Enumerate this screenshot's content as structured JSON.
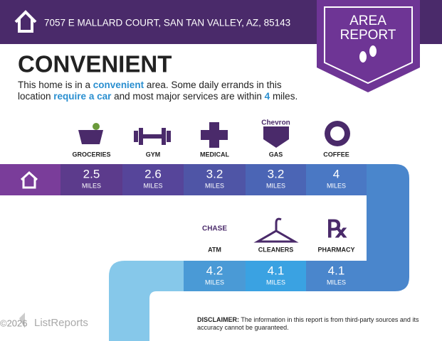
{
  "header": {
    "address": "7057 E MALLARD COURT, SAN TAN VALLEY, AZ, 85143"
  },
  "badge": {
    "line1": "AREA",
    "line2": "REPORT"
  },
  "heading": "CONVENIENT",
  "description": {
    "parts": [
      "This home is in a ",
      "convenient",
      " area. Some daily errands in this location ",
      "require a car",
      " and most major services are within ",
      "4",
      " miles."
    ]
  },
  "amenities": [
    {
      "label": "GROCERIES",
      "value": 2.5,
      "unit": "MILES"
    },
    {
      "label": "GYM",
      "value": 2.6,
      "unit": "MILES"
    },
    {
      "label": "MEDICAL",
      "value": 3.2,
      "unit": "MILES"
    },
    {
      "label": "GAS",
      "value": 3.2,
      "unit": "MILES",
      "brand": "Chevron"
    },
    {
      "label": "COFFEE",
      "value": 4,
      "unit": "MILES"
    },
    {
      "label": "ATM",
      "value": 4.2,
      "unit": "MILES",
      "brand": "CHASE"
    },
    {
      "label": "CLEANERS",
      "value": 4.1,
      "unit": "MILES"
    },
    {
      "label": "PHARMACY",
      "value": 4.1,
      "unit": "MILES"
    }
  ],
  "footer": {
    "copyright": "©2026",
    "brand": "ListReports",
    "disclaimer_label": "DISCLAIMER:",
    "disclaimer_text": "The information in this report is from third-party sources and its accuracy cannot be guaranteed."
  }
}
